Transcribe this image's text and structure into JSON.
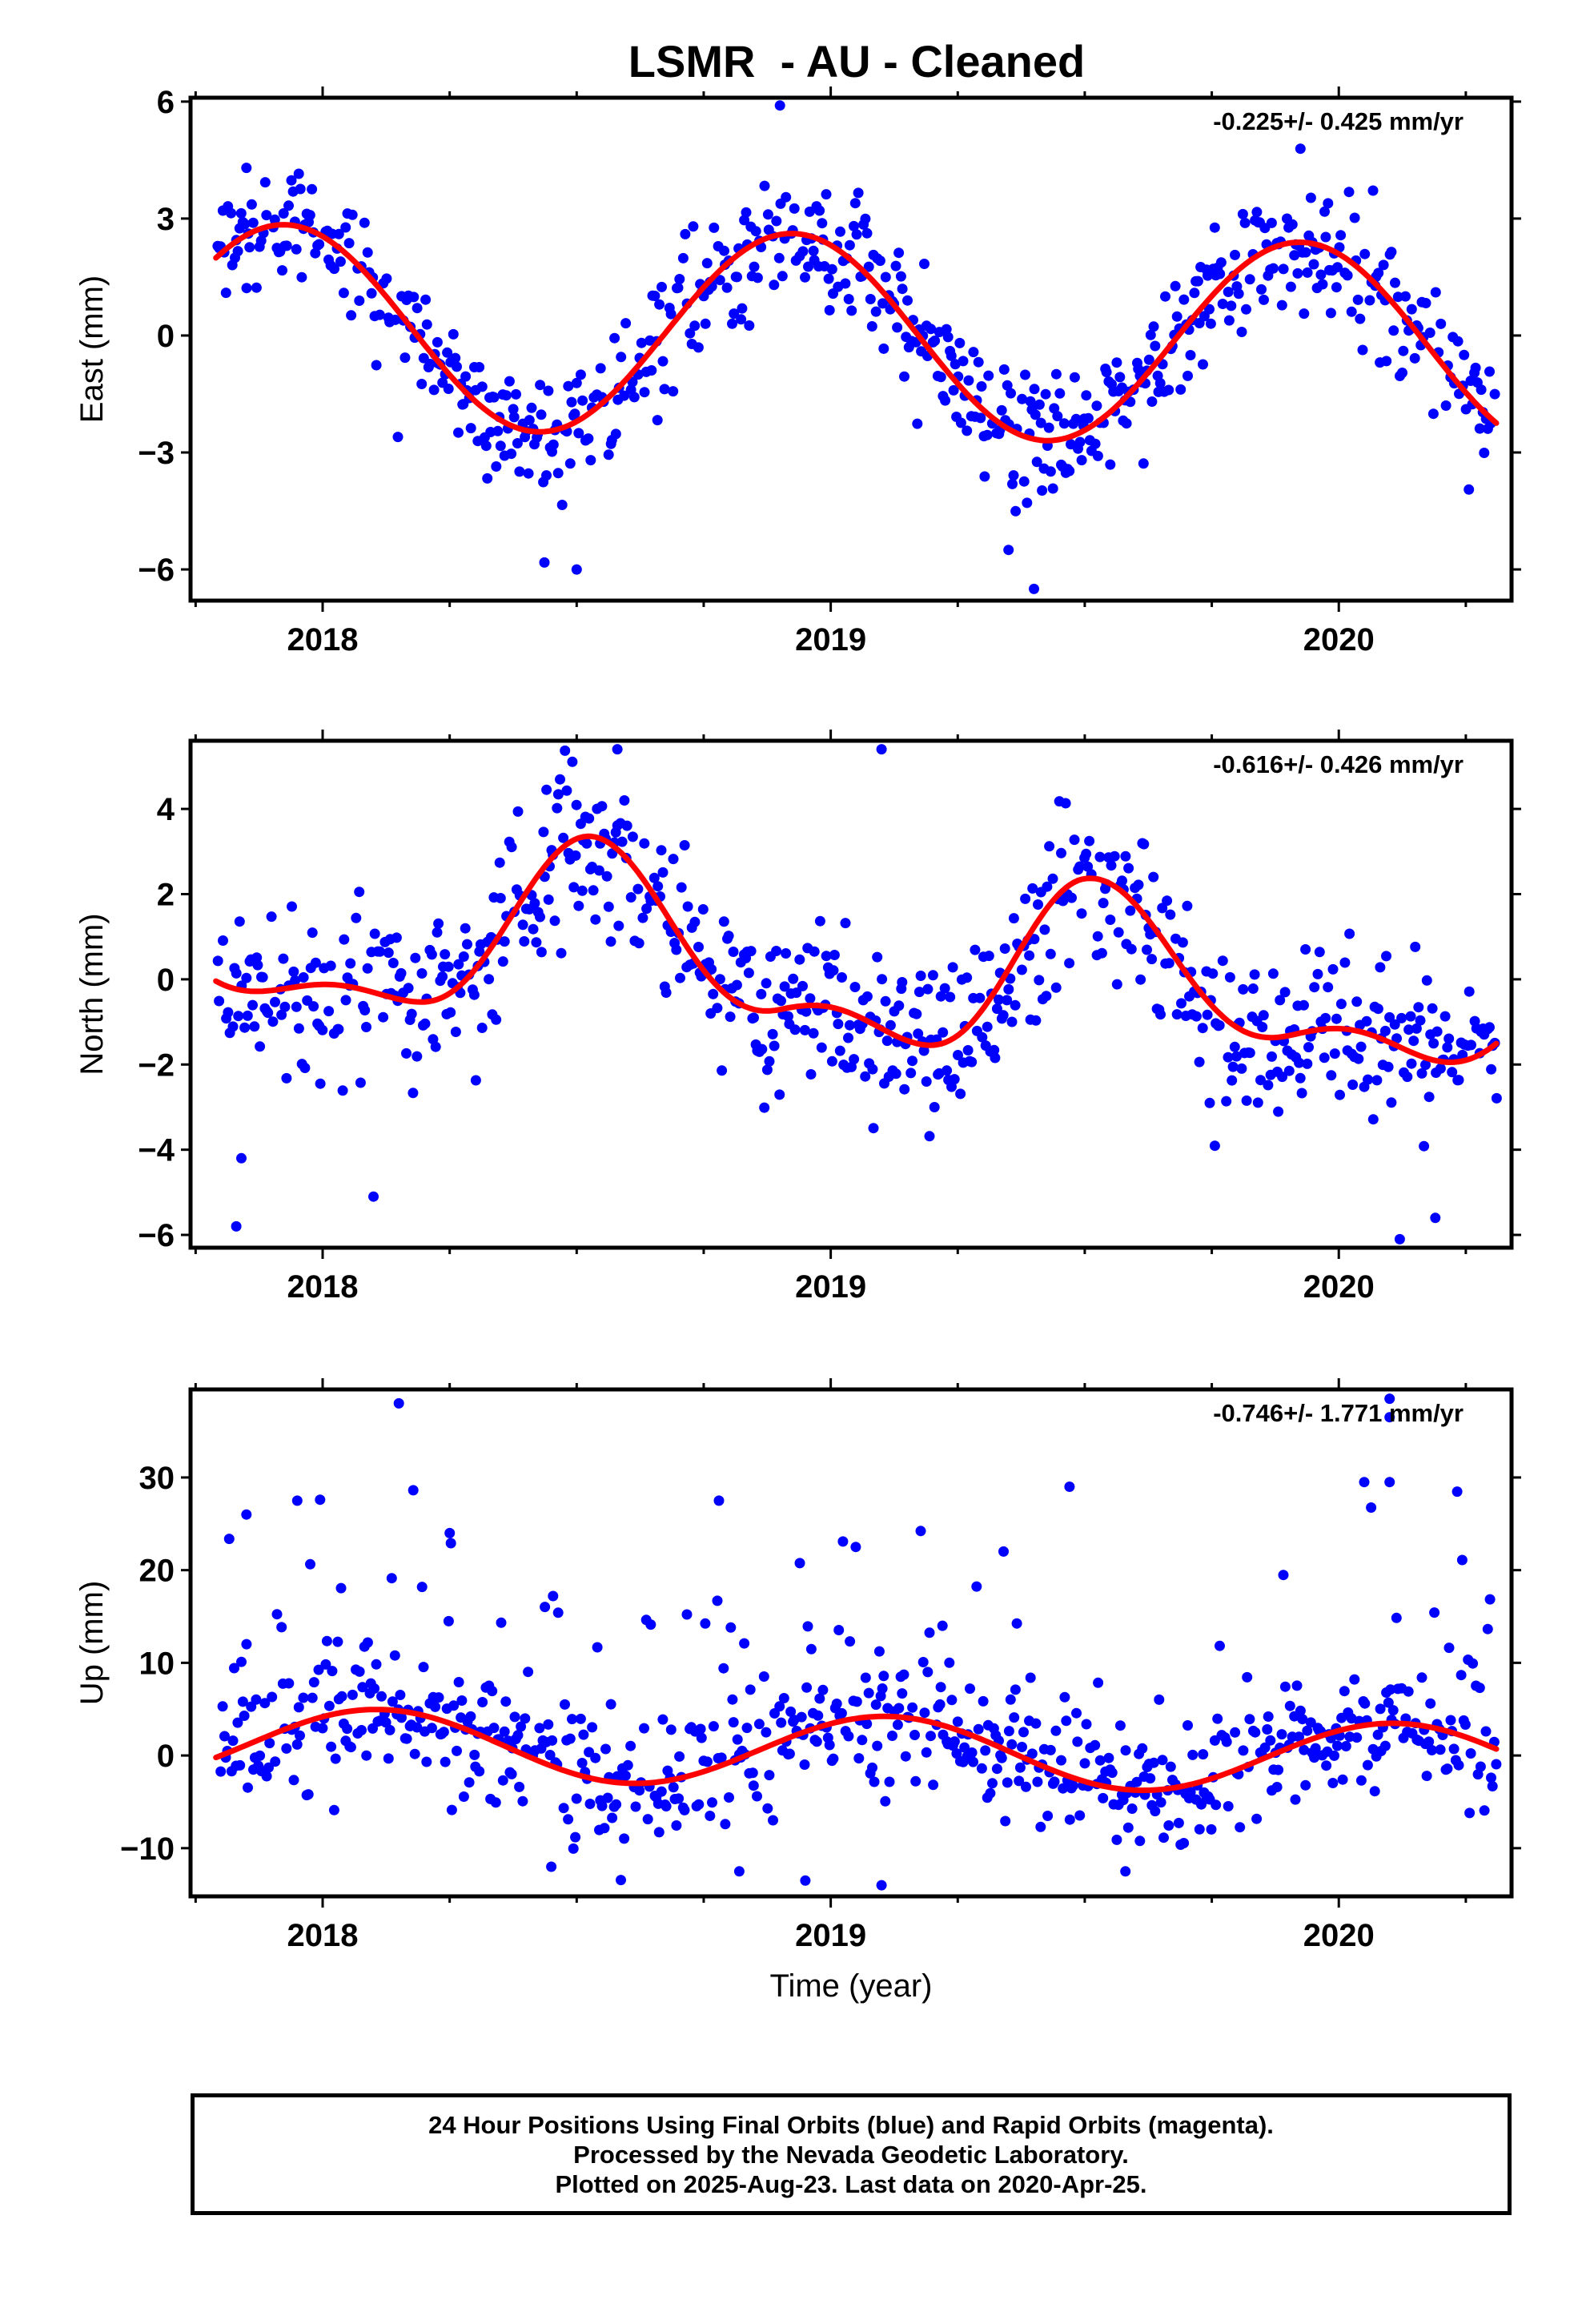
{
  "figure_title": "LSMR  - AU - Cleaned",
  "colors": {
    "points": "#0000ff",
    "fit": "#ff0000",
    "frame": "#000000"
  },
  "chart_data": [
    {
      "type": "scatter",
      "panel": "east",
      "ylabel": "East (mm)",
      "xlabel": "",
      "rate_text": "-0.225+/- 0.425 mm/yr",
      "xlim": [
        2017.74,
        2020.34
      ],
      "ylim": [
        -6.8,
        6.1
      ],
      "x_ticks": [
        2018,
        2019,
        2020
      ],
      "x_tick_labels": [
        "2018",
        "2019",
        "2020"
      ],
      "y_ticks": [
        -6,
        -3,
        0,
        3,
        6
      ],
      "y_tick_labels": [
        "−6",
        "−3",
        "0",
        "3",
        "6"
      ],
      "fit": {
        "x_start": 2017.79,
        "x_end": 2020.31,
        "offset": 0.0,
        "trend": -0.225,
        "t0": 2019.0,
        "amp1": 2.6,
        "phase1": 2017.675,
        "amp2": 0.0,
        "phase2": 0.0,
        "drift": []
      },
      "point_sigma": 0.8,
      "outliers": [
        [
          2018.9,
          5.9
        ],
        [
          2019.4,
          -6.5
        ],
        [
          2018.5,
          -6.0
        ],
        [
          2017.85,
          4.3
        ],
        [
          2019.35,
          -5.5
        ]
      ]
    },
    {
      "type": "scatter",
      "panel": "north",
      "ylabel": "North (mm)",
      "xlabel": "",
      "rate_text": "-0.616+/- 0.426 mm/yr",
      "xlim": [
        2017.74,
        2020.34
      ],
      "ylim": [
        -6.3,
        5.6
      ],
      "x_ticks": [
        2018,
        2019,
        2020
      ],
      "x_tick_labels": [
        "2018",
        "2019",
        "2020"
      ],
      "y_ticks": [
        -6,
        -4,
        -2,
        0,
        2,
        4
      ],
      "y_tick_labels": [
        "−6",
        "−4",
        "−2",
        "0",
        "2",
        "4"
      ],
      "fit": {
        "x_start": 2017.79,
        "x_end": 2020.31,
        "offset": 0.0,
        "trend": -0.616,
        "t0": 2019.0,
        "amp1": 1.2,
        "phase1": 2018.25,
        "amp2": 0.6,
        "phase2": 2018.4,
        "drift": [
          [
            2017.79,
            0.1
          ],
          [
            2018.2,
            -0.3
          ],
          [
            2018.55,
            1.3
          ],
          [
            2018.9,
            0.2
          ],
          [
            2019.2,
            -0.7
          ],
          [
            2019.5,
            0.9
          ],
          [
            2019.9,
            0.2
          ],
          [
            2020.31,
            -0.6
          ]
        ]
      },
      "point_sigma": 1.0,
      "outliers": [
        [
          2017.83,
          -5.8
        ],
        [
          2018.58,
          5.4
        ],
        [
          2019.1,
          5.4
        ],
        [
          2020.12,
          -6.1
        ],
        [
          2020.19,
          -5.6
        ],
        [
          2018.1,
          -5.1
        ],
        [
          2017.84,
          -4.2
        ]
      ]
    },
    {
      "type": "scatter",
      "panel": "up",
      "ylabel": "Up (mm)",
      "xlabel": "Time (year)",
      "rate_text": "-0.746+/- 1.771 mm/yr",
      "xlim": [
        2017.74,
        2020.34
      ],
      "ylim": [
        -15.2,
        39.5
      ],
      "x_ticks": [
        2018,
        2019,
        2020
      ],
      "x_tick_labels": [
        "2018",
        "2019",
        "2020"
      ],
      "y_ticks": [
        -10,
        0,
        10,
        20,
        30
      ],
      "y_tick_labels": [
        "−10",
        "0",
        "10",
        "20",
        "30"
      ],
      "fit": {
        "x_start": 2017.79,
        "x_end": 2020.31,
        "offset": 0.5,
        "trend": -0.746,
        "t0": 2019.0,
        "amp1": 3.8,
        "phase1": 2017.86,
        "amp2": 0.0,
        "phase2": 0.0,
        "drift": []
      },
      "point_sigma": 3.5,
      "outliers": [
        [
          2018.15,
          38.0
        ],
        [
          2020.1,
          38.5
        ],
        [
          2020.1,
          36.5
        ],
        [
          2017.95,
          27.5
        ],
        [
          2018.78,
          27.5
        ],
        [
          2019.47,
          29.0
        ],
        [
          2020.05,
          29.5
        ],
        [
          2020.1,
          29.5
        ],
        [
          2019.22,
          14.0
        ],
        [
          2019.1,
          -14.0
        ],
        [
          2018.95,
          -13.5
        ],
        [
          2018.82,
          -12.5
        ],
        [
          2018.45,
          -12.0
        ],
        [
          2019.58,
          -12.5
        ],
        [
          2017.85,
          26.0
        ],
        [
          2018.25,
          24.0
        ]
      ]
    }
  ],
  "footer": {
    "line1": "24 Hour Positions Using Final Orbits (blue) and Rapid Orbits (magenta).",
    "line2": "Processed by the Nevada Geodetic Laboratory.",
    "line3": "Plotted on 2025-Aug-23. Last data on 2020-Apr-25."
  }
}
